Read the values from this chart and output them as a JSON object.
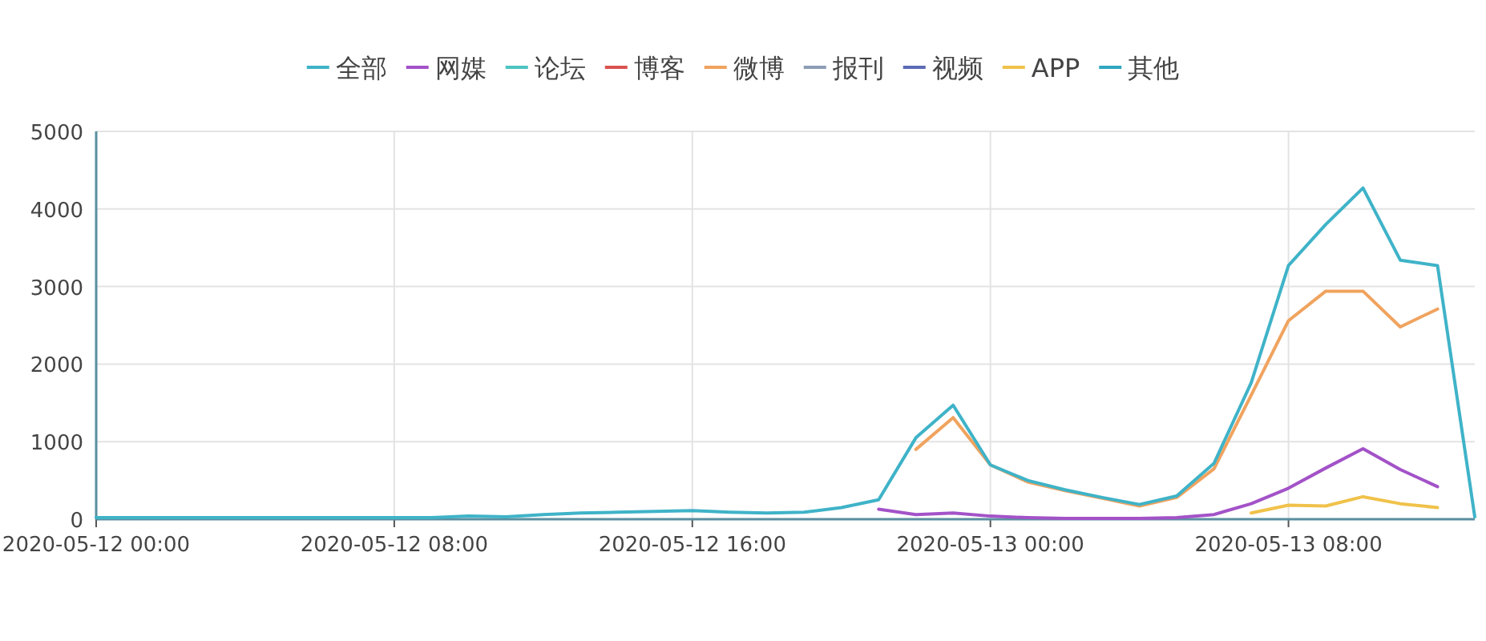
{
  "chart_data": {
    "type": "line",
    "x": [
      "2020-05-12T00:00",
      "2020-05-12T01:00",
      "2020-05-12T02:00",
      "2020-05-12T03:00",
      "2020-05-12T04:00",
      "2020-05-12T05:00",
      "2020-05-12T06:00",
      "2020-05-12T07:00",
      "2020-05-12T08:00",
      "2020-05-12T09:00",
      "2020-05-12T10:00",
      "2020-05-12T11:00",
      "2020-05-12T12:00",
      "2020-05-12T13:00",
      "2020-05-12T14:00",
      "2020-05-12T15:00",
      "2020-05-12T16:00",
      "2020-05-12T17:00",
      "2020-05-12T18:00",
      "2020-05-12T19:00",
      "2020-05-12T20:00",
      "2020-05-12T21:00",
      "2020-05-12T22:00",
      "2020-05-12T23:00",
      "2020-05-13T00:00",
      "2020-05-13T01:00",
      "2020-05-13T02:00",
      "2020-05-13T03:00",
      "2020-05-13T04:00",
      "2020-05-13T05:00",
      "2020-05-13T06:00",
      "2020-05-13T07:00",
      "2020-05-13T08:00",
      "2020-05-13T09:00",
      "2020-05-13T10:00",
      "2020-05-13T11:00",
      "2020-05-13T12:00",
      "2020-05-13T13:00"
    ],
    "series": [
      {
        "name": "全部",
        "color": "#3fb3c8",
        "values": [
          20,
          20,
          20,
          20,
          20,
          20,
          20,
          20,
          20,
          20,
          40,
          30,
          60,
          80,
          90,
          100,
          110,
          90,
          80,
          90,
          150,
          250,
          1050,
          1470,
          700,
          500,
          380,
          280,
          190,
          300,
          720,
          1760,
          3270,
          3800,
          4270,
          3340,
          3270,
          30
        ]
      },
      {
        "name": "网媒",
        "color": "#a352c8",
        "values": [
          null,
          null,
          null,
          null,
          null,
          null,
          null,
          null,
          null,
          null,
          null,
          null,
          null,
          null,
          null,
          null,
          null,
          null,
          null,
          null,
          null,
          130,
          60,
          80,
          40,
          20,
          10,
          10,
          10,
          20,
          60,
          200,
          400,
          660,
          910,
          640,
          420,
          null
        ]
      },
      {
        "name": "论坛",
        "color": "#4dc4c0",
        "values": [
          null,
          null,
          null,
          null,
          null,
          null,
          null,
          null,
          null,
          null,
          null,
          null,
          null,
          null,
          null,
          null,
          null,
          null,
          null,
          null,
          null,
          null,
          null,
          null,
          null,
          null,
          null,
          null,
          null,
          null,
          null,
          null,
          null,
          null,
          null,
          null,
          null,
          null
        ]
      },
      {
        "name": "博客",
        "color": "#d9534f",
        "values": [
          null,
          null,
          null,
          null,
          null,
          null,
          null,
          null,
          null,
          null,
          null,
          null,
          null,
          null,
          null,
          null,
          null,
          null,
          null,
          null,
          null,
          null,
          null,
          null,
          null,
          null,
          null,
          null,
          null,
          null,
          null,
          null,
          null,
          null,
          null,
          null,
          null,
          null
        ]
      },
      {
        "name": "微博",
        "color": "#f0a35e",
        "values": [
          null,
          null,
          null,
          null,
          null,
          null,
          null,
          null,
          null,
          null,
          null,
          null,
          null,
          null,
          null,
          null,
          null,
          null,
          null,
          null,
          null,
          null,
          900,
          1310,
          700,
          480,
          370,
          270,
          170,
          280,
          650,
          1600,
          2560,
          2940,
          2940,
          2480,
          2710,
          null
        ]
      },
      {
        "name": "报刊",
        "color": "#8c9db5",
        "values": [
          null,
          null,
          null,
          null,
          null,
          null,
          null,
          null,
          null,
          null,
          null,
          null,
          null,
          null,
          null,
          null,
          null,
          null,
          null,
          null,
          null,
          null,
          null,
          null,
          null,
          null,
          null,
          null,
          null,
          null,
          null,
          null,
          null,
          null,
          null,
          null,
          null,
          null
        ]
      },
      {
        "color": "#3d7fc4",
        "values": [
          null,
          null,
          null,
          null,
          null,
          null,
          null,
          null,
          null,
          null,
          null,
          null,
          null,
          null,
          null,
          null,
          null,
          null,
          null,
          null,
          null,
          null,
          null,
          null,
          null,
          null,
          null,
          null,
          null,
          null,
          null,
          null,
          null,
          null,
          null,
          null,
          null,
          null
        ]
      },
      {
        "name": "视频",
        "color": "#5b6bb5",
        "values": [
          null,
          null,
          null,
          null,
          null,
          null,
          null,
          null,
          null,
          null,
          null,
          null,
          null,
          null,
          null,
          null,
          null,
          null,
          null,
          null,
          null,
          null,
          null,
          null,
          null,
          null,
          null,
          null,
          null,
          null,
          null,
          null,
          null,
          null,
          null,
          null,
          null,
          null
        ]
      },
      {
        "name": "APP",
        "color": "#f0c24a",
        "values": [
          null,
          null,
          null,
          null,
          null,
          null,
          null,
          null,
          null,
          null,
          null,
          null,
          null,
          null,
          null,
          null,
          null,
          null,
          null,
          null,
          null,
          null,
          null,
          null,
          null,
          null,
          null,
          null,
          null,
          null,
          null,
          80,
          180,
          170,
          290,
          200,
          150,
          null
        ]
      },
      {
        "name": "其他",
        "color": "#2fa6c0",
        "values": [
          null,
          null,
          null,
          null,
          null,
          null,
          null,
          null,
          null,
          null,
          null,
          null,
          null,
          null,
          null,
          null,
          null,
          null,
          null,
          null,
          null,
          null,
          null,
          null,
          null,
          null,
          null,
          null,
          null,
          null,
          null,
          null,
          null,
          null,
          null,
          null,
          null,
          null
        ]
      }
    ],
    "xlim": [
      "2020-05-12T00:00",
      "2020-05-13T13:00"
    ],
    "xticks": [
      {
        "value": "2020-05-12T00:00",
        "label": "2020-05-12 00:00"
      },
      {
        "value": "2020-05-12T08:00",
        "label": "2020-05-12 08:00"
      },
      {
        "value": "2020-05-12T16:00",
        "label": "2020-05-12 16:00"
      },
      {
        "value": "2020-05-13T00:00",
        "label": "2020-05-13 00:00"
      },
      {
        "value": "2020-05-13T08:00",
        "label": "2020-05-13 08:00"
      }
    ],
    "ylim": [
      0,
      5000
    ],
    "yticks": [
      0,
      1000,
      2000,
      3000,
      4000,
      5000
    ],
    "grid": true,
    "legend": "top"
  }
}
